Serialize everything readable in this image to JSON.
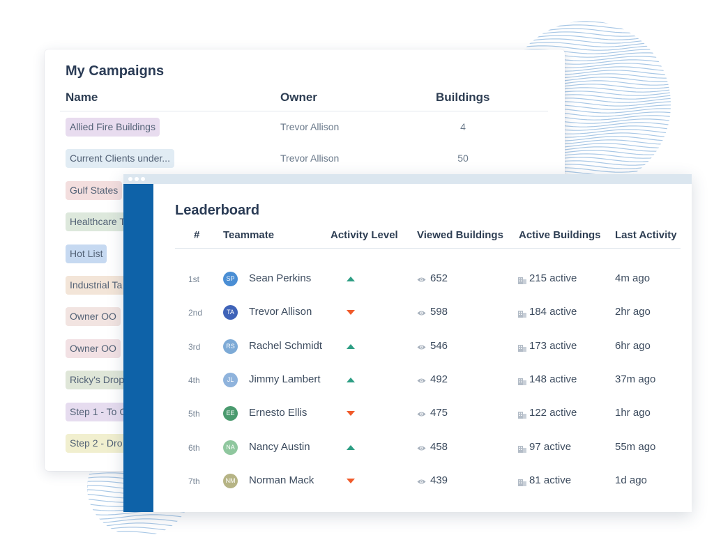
{
  "campaigns": {
    "title": "My Campaigns",
    "headers": {
      "name": "Name",
      "owner": "Owner",
      "buildings": "Buildings"
    },
    "rows": [
      {
        "name": "Allied Fire Buildings",
        "owner": "Trevor Allison",
        "buildings": "4",
        "color": "#e8dcef"
      },
      {
        "name": "Current Clients under...",
        "owner": "Trevor Allison",
        "buildings": "50",
        "color": "#e1ecf4"
      },
      {
        "name": "Gulf States",
        "owner": "",
        "buildings": "",
        "color": "#f3dede"
      },
      {
        "name": "Healthcare T",
        "owner": "",
        "buildings": "",
        "color": "#dde8dc"
      },
      {
        "name": "Hot List",
        "owner": "",
        "buildings": "",
        "color": "#c6d9f1"
      },
      {
        "name": "Industrial Ta",
        "owner": "",
        "buildings": "",
        "color": "#f3e5d8"
      },
      {
        "name": "Owner OO",
        "owner": "",
        "buildings": "",
        "color": "#f2e4e1"
      },
      {
        "name": "Owner OO",
        "owner": "",
        "buildings": "",
        "color": "#f2e1e4"
      },
      {
        "name": "Ricky's Drop",
        "owner": "",
        "buildings": "",
        "color": "#dfe6d8"
      },
      {
        "name": "Step 1 - To C",
        "owner": "",
        "buildings": "",
        "color": "#e6dcef"
      },
      {
        "name": "Step 2 - Dro",
        "owner": "",
        "buildings": "",
        "color": "#f1efcf"
      }
    ]
  },
  "leaderboard": {
    "title": "Leaderboard",
    "headers": {
      "rank": "#",
      "teammate": "Teammate",
      "activity": "Activity Level",
      "viewed": "Viewed Buildings",
      "active": "Active Buildings",
      "last": "Last Activity"
    },
    "rows": [
      {
        "rank": "1st",
        "initials": "SP",
        "name": "Sean Perkins",
        "trend": "up",
        "viewed": "652",
        "active": "215 active",
        "last": "4m ago",
        "color": "#4a8ed4"
      },
      {
        "rank": "2nd",
        "initials": "TA",
        "name": "Trevor Allison",
        "trend": "down",
        "viewed": "598",
        "active": "184 active",
        "last": "2hr ago",
        "color": "#3f63b8"
      },
      {
        "rank": "3rd",
        "initials": "RS",
        "name": "Rachel Schmidt",
        "trend": "up",
        "viewed": "546",
        "active": "173 active",
        "last": "6hr ago",
        "color": "#7daad6"
      },
      {
        "rank": "4th",
        "initials": "JL",
        "name": "Jimmy Lambert",
        "trend": "up",
        "viewed": "492",
        "active": "148 active",
        "last": "37m ago",
        "color": "#8fb3dc"
      },
      {
        "rank": "5th",
        "initials": "EE",
        "name": "Ernesto Ellis",
        "trend": "down",
        "viewed": "475",
        "active": "122 active",
        "last": "1hr ago",
        "color": "#4a9a6e"
      },
      {
        "rank": "6th",
        "initials": "NA",
        "name": "Nancy Austin",
        "trend": "up",
        "viewed": "458",
        "active": "97 active",
        "last": "55m ago",
        "color": "#8fc79e"
      },
      {
        "rank": "7th",
        "initials": "NM",
        "name": "Norman Mack",
        "trend": "down",
        "viewed": "439",
        "active": "81 active",
        "last": "1d ago",
        "color": "#b6b485"
      }
    ]
  },
  "icons": {
    "viewed": "eye-icon",
    "active": "building-icon",
    "trend_up": "triangle-up-icon",
    "trend_down": "triangle-down-icon"
  }
}
